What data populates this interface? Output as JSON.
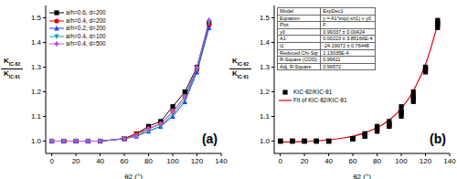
{
  "chart_data": [
    {
      "type": "line",
      "annotation": "(a)",
      "xlabel": "θ2 (°)",
      "ylabel": {
        "numerator": "KIC·θ2",
        "denominator": "KIC·θ1"
      },
      "x": [
        0,
        10,
        20,
        30,
        40,
        60,
        70,
        80,
        90,
        100,
        110,
        120,
        130
      ],
      "xlim": [
        -5,
        140
      ],
      "xticks": [
        0,
        20,
        40,
        60,
        80,
        100,
        120,
        140
      ],
      "ylim": [
        0.95,
        1.55
      ],
      "yticks": [
        {
          "value": 1,
          "label": "1.0"
        },
        1.1,
        1.2,
        1.3,
        1.4,
        1.5
      ],
      "grid": false,
      "legend": "upper left",
      "series": [
        {
          "name": "a/h=0.6, d=200",
          "color": "#000000",
          "marker": "square",
          "values": [
            1,
            1,
            1,
            1,
            1,
            1.01,
            1.03,
            1.06,
            1.08,
            1.14,
            1.2,
            1.3,
            1.48
          ]
        },
        {
          "name": "a/h=0.4, d=200",
          "color": "#e8000b",
          "marker": "circle",
          "values": [
            1,
            1,
            1,
            1,
            1,
            1.01,
            1.03,
            1.05,
            1.07,
            1.12,
            1.18,
            1.29,
            1.47
          ]
        },
        {
          "name": "a/h=0.2, d=200",
          "color": "#1f3fff",
          "marker": "triangle",
          "values": [
            1,
            1,
            1,
            1,
            1,
            1.01,
            1.02,
            1.04,
            1.06,
            1.1,
            1.16,
            1.28,
            1.46
          ]
        },
        {
          "name": "a/h=0.4, d=100",
          "color": "#13a89e",
          "marker": "triangle-down",
          "values": [
            1,
            1,
            1,
            1,
            1,
            1.01,
            1.02,
            1.04,
            1.06,
            1.11,
            1.17,
            1.29,
            1.48
          ]
        },
        {
          "name": "a/h=0.4, d=500",
          "color": "#b455d9",
          "marker": "diamond",
          "values": [
            1,
            1,
            1,
            1,
            1,
            1.01,
            1.02,
            1.05,
            1.07,
            1.12,
            1.18,
            1.3,
            1.49
          ]
        }
      ]
    },
    {
      "type": "scatter",
      "annotation": "(b)",
      "xlabel": "θ2 (°)",
      "ylabel": {
        "numerator": "KIC·θ2",
        "denominator": "KIC·θ1"
      },
      "xlim": [
        -5,
        140
      ],
      "xticks": [
        0,
        20,
        40,
        60,
        80,
        100,
        120,
        140
      ],
      "ylim": [
        0.95,
        1.55
      ],
      "yticks": [
        {
          "value": 1,
          "label": "1.0"
        },
        1.1,
        1.2,
        1.3,
        1.4,
        1.5
      ],
      "grid": false,
      "legend": "center left",
      "fit_table": {
        "rows": [
          [
            "Model",
            "ExpDec1"
          ],
          [
            "Equation",
            "y = A1*exp(-x/t1) + y0"
          ],
          [
            "Plot",
            "F"
          ],
          [
            "y0",
            "0.99337 ± 0.00424"
          ],
          [
            "A1",
            "0.00223 ± 3.85166E-4"
          ],
          [
            "t1",
            "-24.19072 ± 0.76448"
          ],
          [
            "Reduced Chi-Sqr",
            "1.13035E-4"
          ],
          [
            "R-Square (COD)",
            "0.99611"
          ],
          [
            "Adj. R-Square",
            "0.99572"
          ]
        ]
      },
      "series": [
        {
          "name": "KIC·θ2/KIC·θ1",
          "type": "scatter",
          "color": "#000000",
          "marker": "square",
          "x": [
            0,
            10,
            20,
            30,
            40,
            60,
            70,
            80,
            90,
            100,
            110,
            120,
            130,
            0,
            10,
            20,
            30,
            40,
            60,
            70,
            80,
            90,
            100,
            110,
            120,
            130,
            0,
            10,
            20,
            30,
            40,
            60,
            70,
            80,
            90,
            100,
            110,
            120,
            130,
            0,
            10,
            20,
            30,
            40,
            60,
            70,
            80,
            90,
            100,
            110,
            120,
            130,
            0,
            10,
            20,
            30,
            40,
            60,
            70,
            80,
            90,
            100,
            110,
            120,
            130
          ],
          "values": [
            1,
            1,
            1,
            1,
            1,
            1.01,
            1.03,
            1.06,
            1.08,
            1.14,
            1.2,
            1.3,
            1.48,
            1,
            1,
            1,
            1,
            1,
            1.01,
            1.03,
            1.05,
            1.07,
            1.12,
            1.18,
            1.29,
            1.47,
            1,
            1,
            1,
            1,
            1,
            1.01,
            1.02,
            1.04,
            1.06,
            1.1,
            1.16,
            1.28,
            1.46,
            1,
            1,
            1,
            1,
            1,
            1.01,
            1.02,
            1.04,
            1.06,
            1.11,
            1.17,
            1.29,
            1.48,
            1,
            1,
            1,
            1,
            1,
            1.01,
            1.02,
            1.05,
            1.07,
            1.12,
            1.18,
            1.3,
            1.49
          ]
        },
        {
          "name": "Fit of KIC·θ2/KIC·θ1",
          "type": "line",
          "color": "#e8000b",
          "line_style": "solid",
          "x": [
            0,
            10,
            20,
            30,
            40,
            50,
            60,
            70,
            80,
            90,
            100,
            110,
            120,
            130
          ],
          "values": [
            0.9956,
            0.9967,
            0.9985,
            1.001,
            1.005,
            1.011,
            1.02,
            1.0337,
            1.0543,
            1.0855,
            1.1322,
            1.2039,
            1.311,
            1.473
          ]
        }
      ]
    }
  ]
}
